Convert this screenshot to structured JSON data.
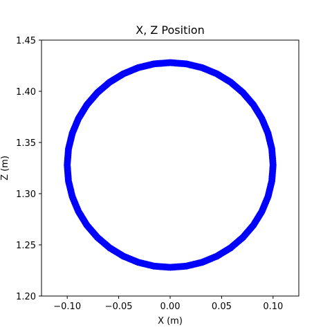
{
  "chart_data": {
    "type": "scatter",
    "title": "X, Z Position",
    "xlabel": "X (m)",
    "ylabel": "Z (m)",
    "xlim": [
      -0.125,
      0.125
    ],
    "ylim": [
      1.2,
      1.45
    ],
    "xticks": [
      -0.1,
      -0.05,
      0.0,
      0.05,
      0.1
    ],
    "xtick_labels": [
      "−0.10",
      "−0.05",
      "0.00",
      "0.05",
      "0.10"
    ],
    "yticks": [
      1.2,
      1.25,
      1.3,
      1.35,
      1.4,
      1.45
    ],
    "ytick_labels": [
      "1.20",
      "1.25",
      "1.30",
      "1.35",
      "1.40",
      "1.45"
    ],
    "grid": false,
    "legend": false,
    "marker_color": "#0000ff",
    "series": [
      {
        "x": [
          0.0,
          0.0156,
          0.0309,
          0.0454,
          0.0588,
          0.0707,
          0.0809,
          0.0891,
          0.0951,
          0.0988,
          0.1,
          0.0988,
          0.0951,
          0.0891,
          0.0809,
          0.0707,
          0.0588,
          0.0454,
          0.0309,
          0.0156,
          0.0,
          -0.0156,
          -0.0309,
          -0.0454,
          -0.0588,
          -0.0707,
          -0.0809,
          -0.0891,
          -0.0951,
          -0.0988,
          -0.1,
          -0.0988,
          -0.0951,
          -0.0891,
          -0.0809,
          -0.0707,
          -0.0588,
          -0.0454,
          -0.0309,
          -0.0156,
          0.0
        ],
        "y": [
          1.428,
          1.4268,
          1.4231,
          1.4171,
          1.4089,
          1.3987,
          1.3868,
          1.3734,
          1.3589,
          1.3436,
          1.328,
          1.3124,
          1.2971,
          1.2826,
          1.2692,
          1.2573,
          1.2471,
          1.2389,
          1.2329,
          1.2292,
          1.228,
          1.2292,
          1.2329,
          1.2389,
          1.2471,
          1.2573,
          1.2692,
          1.2826,
          1.2971,
          1.3124,
          1.328,
          1.3436,
          1.3589,
          1.3734,
          1.3868,
          1.3987,
          1.4089,
          1.4171,
          1.4231,
          1.4268,
          1.428
        ]
      }
    ]
  }
}
